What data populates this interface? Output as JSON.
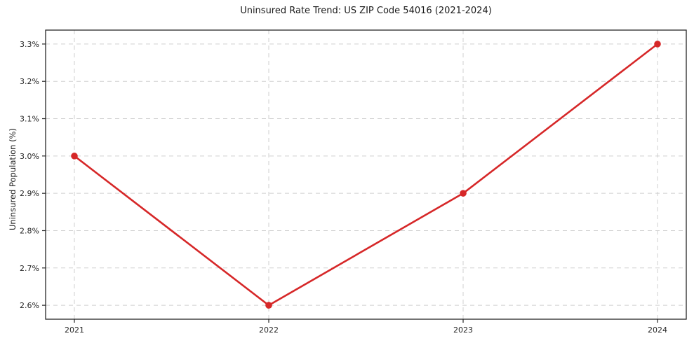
{
  "chart_data": {
    "type": "line",
    "title": "Uninsured Rate Trend: US ZIP Code 54016 (2021-2024)",
    "xlabel": "",
    "ylabel": "Uninsured Population (%)",
    "categories": [
      "2021",
      "2022",
      "2023",
      "2024"
    ],
    "x": [
      2021,
      2022,
      2023,
      2024
    ],
    "series": [
      {
        "name": "Uninsured Population (%)",
        "values": [
          3.0,
          2.6,
          2.9,
          3.3
        ]
      }
    ],
    "y_ticks": [
      2.6,
      2.7,
      2.8,
      2.9,
      3.0,
      3.1,
      3.2,
      3.3
    ],
    "y_tick_labels": [
      "2.6%",
      "2.7%",
      "2.8%",
      "2.9%",
      "3.0%",
      "3.1%",
      "3.2%",
      "3.3%"
    ],
    "ylim": [
      2.5627,
      3.3373
    ],
    "xlim": [
      2020.852,
      2024.148
    ],
    "grid": true,
    "legend_position": "none",
    "line_color": "#d62728",
    "marker": "circle",
    "marker_radius": 4.8
  }
}
